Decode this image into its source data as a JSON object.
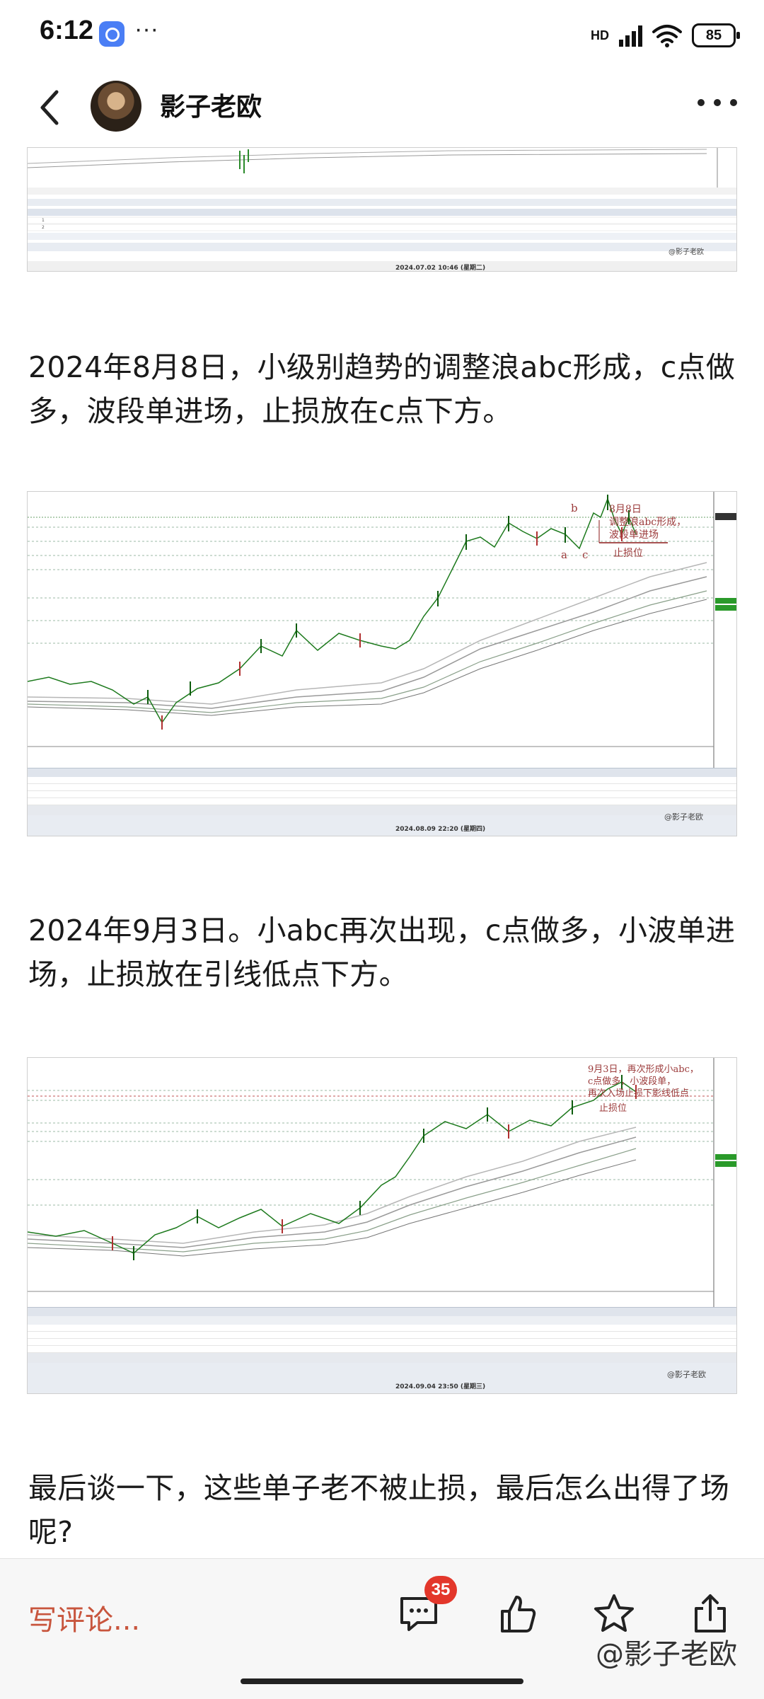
{
  "status_bar": {
    "time": "6:12",
    "more": "···",
    "network": "HD",
    "battery": "85"
  },
  "header": {
    "author_name": "影子老欧"
  },
  "paragraphs": [
    "2024年8月8日，小级别趋势的调整浪abc形成，c点做多，波段单进场，止损放在c点下方。",
    "2024年9月3日。小abc再次出现，c点做多，小波单进场，止损放在引线低点下方。",
    "最后谈一下，这些单子老不被止损，最后怎么出得了场呢?"
  ],
  "chart1": {
    "annotation_lines": [
      "8月8日",
      "调整浪abc形成，",
      "波段单进场"
    ],
    "stop_label": "止损位",
    "point_a": "a",
    "point_b": "b",
    "point_c": "c",
    "footer_date": "2024.08.09 22:20 (星期四)",
    "watermark": "@影子老欧"
  },
  "chart2": {
    "annotation_lines": [
      "9月3日，再次形成小abc，",
      "c点做多，小波段单，",
      "再次入场止损下影线低点"
    ],
    "stop_label": "止损位",
    "footer_date": "2024.09.04 23:50 (星期三)",
    "watermark": "@影子老欧"
  },
  "top_image": {
    "footer_date": "2024.07.02 10:46 (星期二)",
    "watermark": "@影子老欧"
  },
  "bottom_bar": {
    "write_comment": "写评论...",
    "comment_count": "35",
    "watermark": "@影子老欧"
  }
}
